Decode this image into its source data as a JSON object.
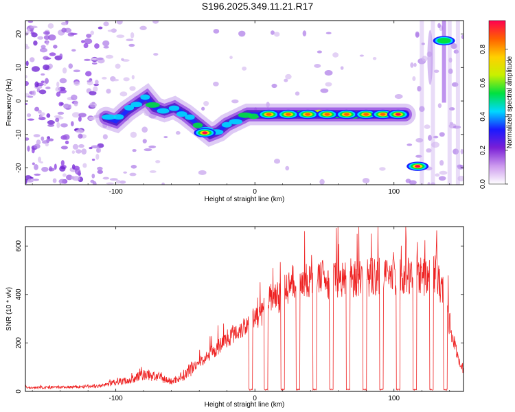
{
  "title": "S196.2025.349.11.21.R17",
  "chart_data": [
    {
      "type": "heatmap",
      "xlabel": "Height of straight line (km)",
      "ylabel": "Frequency (Hz)",
      "xlim": [
        -165,
        150
      ],
      "ylim": [
        -25,
        24
      ],
      "xticks": [
        -100,
        0,
        100
      ],
      "yticks": [
        20,
        10,
        0,
        -10,
        -20
      ],
      "colorbar": {
        "label": "Normalized spectral amplitude",
        "range": [
          0,
          0.97
        ],
        "ticks": [
          0,
          0.2,
          0.4,
          0.6,
          0.8
        ],
        "tick_labels": [
          "0.0",
          "0.2",
          "0.4",
          "0.6",
          "0.8"
        ],
        "colors": [
          "#ffffff",
          "#cc99ee",
          "#7a1fd6",
          "#1a1aff",
          "#00d9ff",
          "#00e040",
          "#c8f000",
          "#ffd000",
          "#ff6000",
          "#ff0050"
        ]
      },
      "ridge": {
        "x": [
          -107,
          -100,
          -92,
          -85,
          -78,
          -72,
          -65,
          -58,
          -50,
          -44,
          -38,
          -32,
          -26,
          -20,
          -15,
          -10,
          -5,
          0,
          5,
          10,
          20,
          30,
          40,
          50,
          60,
          70,
          80,
          90,
          100,
          108
        ],
        "y": [
          -5,
          -6,
          -3,
          -1,
          1,
          -2,
          -3,
          -2,
          -4,
          -6,
          -8,
          -10,
          -9,
          -7,
          -6,
          -5,
          -4,
          -4,
          -4,
          -4,
          -4,
          -4,
          -4,
          -4,
          -4,
          -4,
          -4,
          -4,
          -4,
          -4
        ]
      },
      "hotspots": [
        {
          "x": -36,
          "y": -9.5,
          "v": 0.95
        },
        {
          "x": 10,
          "y": -4,
          "v": 0.9
        },
        {
          "x": 24,
          "y": -4,
          "v": 0.9
        },
        {
          "x": 38,
          "y": -4,
          "v": 0.92
        },
        {
          "x": 52,
          "y": -4,
          "v": 0.92
        },
        {
          "x": 66,
          "y": -4,
          "v": 0.9
        },
        {
          "x": 80,
          "y": -4,
          "v": 0.88
        },
        {
          "x": 92,
          "y": -4,
          "v": 0.85
        },
        {
          "x": 103,
          "y": -4,
          "v": 0.95
        },
        {
          "x": 117,
          "y": -19.5,
          "v": 0.97
        },
        {
          "x": 136,
          "y": 18,
          "v": 0.55
        }
      ]
    },
    {
      "type": "line",
      "xlabel": "Height of straight line (km)",
      "ylabel": "SNR (10 * v/v)",
      "xlim": [
        -165,
        150
      ],
      "ylim": [
        0,
        680
      ],
      "xticks": [
        -100,
        0,
        100
      ],
      "yticks": [
        0,
        200,
        400,
        600
      ],
      "color": "#ee2222",
      "envelope": {
        "x": [
          -165,
          -130,
          -110,
          -100,
          -90,
          -80,
          -70,
          -60,
          -50,
          -40,
          -30,
          -20,
          -10,
          0,
          5,
          10,
          20,
          25,
          30,
          50,
          70,
          90,
          110,
          130,
          135,
          140,
          145,
          150
        ],
        "y": [
          15,
          18,
          22,
          40,
          45,
          70,
          60,
          40,
          70,
          120,
          160,
          220,
          260,
          300,
          320,
          380,
          400,
          440,
          460,
          460,
          470,
          470,
          470,
          480,
          420,
          280,
          160,
          80
        ]
      },
      "dropouts_x": [
        -3,
        8,
        20,
        31,
        43,
        55,
        67,
        79,
        91,
        103,
        115,
        127,
        137
      ]
    }
  ]
}
